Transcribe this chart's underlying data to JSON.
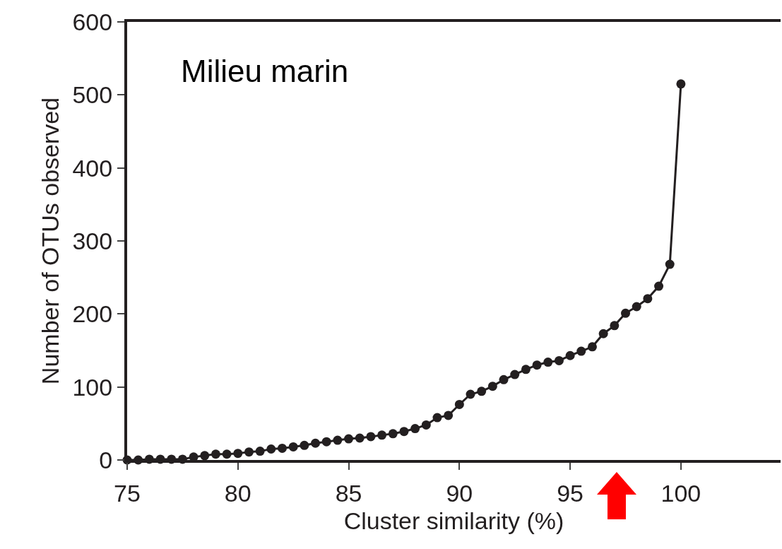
{
  "chart_data": {
    "type": "line",
    "xlabel": "Cluster similarity (%)",
    "ylabel": "Number of OTUs observed",
    "annotations": [
      "Milieu marin"
    ],
    "x": [
      75,
      75.5,
      76,
      76.5,
      77,
      77.5,
      78,
      78.5,
      79,
      79.5,
      80,
      80.5,
      81,
      81.5,
      82,
      82.5,
      83,
      83.5,
      84,
      84.5,
      85,
      85.5,
      86,
      86.5,
      87,
      87.5,
      88,
      88.5,
      89,
      89.5,
      90,
      90.5,
      91,
      91.5,
      92,
      92.5,
      93,
      93.5,
      94,
      94.5,
      95,
      95.5,
      96,
      96.5,
      97,
      97.5,
      98,
      98.5,
      99,
      99.5,
      100
    ],
    "series": [
      {
        "color": "#231f20",
        "values": [
          0,
          0,
          1,
          1,
          1,
          1,
          4,
          6,
          8,
          8,
          9,
          11,
          12,
          15,
          16,
          18,
          20,
          23,
          25,
          27,
          29,
          30,
          32,
          34,
          36,
          39,
          43,
          48,
          58,
          61,
          76,
          90,
          94,
          101,
          110,
          117,
          124,
          130,
          134,
          136,
          143,
          149,
          155,
          173,
          184,
          201,
          210,
          221,
          238,
          268,
          515
        ]
      }
    ],
    "xlim": [
      75,
      104.5
    ],
    "xticks": [
      75,
      80,
      85,
      90,
      95,
      100
    ],
    "ylim": [
      0,
      600
    ],
    "yticks": [
      0,
      100,
      200,
      300,
      400,
      500,
      600
    ],
    "grid": false,
    "legend": false,
    "marker": "circle",
    "line_style": "solid"
  }
}
